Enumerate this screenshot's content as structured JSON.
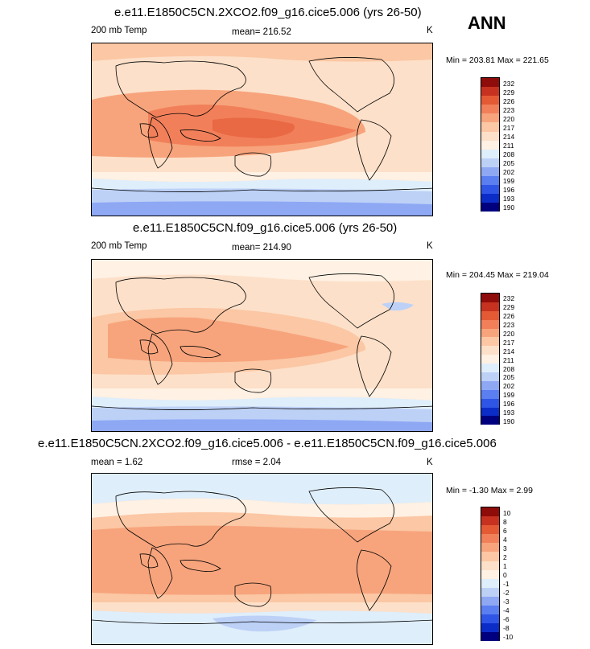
{
  "season": "ANN",
  "colors": {
    "abs": [
      "#00007f",
      "#0c2cc8",
      "#2f55e6",
      "#5b7ef0",
      "#8ea8f4",
      "#bdd1f7",
      "#dfeefb",
      "#fff1e3",
      "#fde0c9",
      "#fbc7a4",
      "#f7a47c",
      "#f1805a",
      "#e45a35",
      "#c6321f",
      "#8e0c09"
    ],
    "diff": [
      "#00007f",
      "#0c2cc8",
      "#2f55e6",
      "#5b7ef0",
      "#8ea8f4",
      "#bdd1f7",
      "#dfeefb",
      "#fff1e3",
      "#fde0c9",
      "#fbc7a4",
      "#f7a47c",
      "#f1805a",
      "#e45a35",
      "#c6321f",
      "#8e0c09"
    ]
  },
  "panels": [
    {
      "title": "e.e11.E1850C5CN.2XCO2.f09_g16.cice5.006 (yrs 26-50)",
      "left_label": "200 mb Temp",
      "center_label": "mean= 216.52",
      "units": "K",
      "minmax": "Min = 203.81 Max = 221.65",
      "colorbar_labels": [
        "232",
        "229",
        "226",
        "223",
        "220",
        "217",
        "214",
        "211",
        "208",
        "205",
        "202",
        "199",
        "196",
        "193",
        "190"
      ]
    },
    {
      "title": "e.e11.E1850C5CN.f09_g16.cice5.006 (yrs 26-50)",
      "left_label": "200 mb Temp",
      "center_label": "mean= 214.90",
      "units": "K",
      "minmax": "Min = 204.45 Max = 219.04",
      "colorbar_labels": [
        "232",
        "229",
        "226",
        "223",
        "220",
        "217",
        "214",
        "211",
        "208",
        "205",
        "202",
        "199",
        "196",
        "193",
        "190"
      ]
    },
    {
      "title": "e.e11.E1850C5CN.2XCO2.f09_g16.cice5.006 - e.e11.E1850C5CN.f09_g16.cice5.006",
      "left_label": "mean =   1.62",
      "center_label": "rmse =   2.04",
      "units": "K",
      "minmax": "Min =  -1.30 Max =   2.99",
      "colorbar_labels": [
        "10",
        "8",
        "6",
        "4",
        "3",
        "2",
        "1",
        "0",
        "-1",
        "-2",
        "-3",
        "-4",
        "-6",
        "-8",
        "-10"
      ]
    }
  ]
}
